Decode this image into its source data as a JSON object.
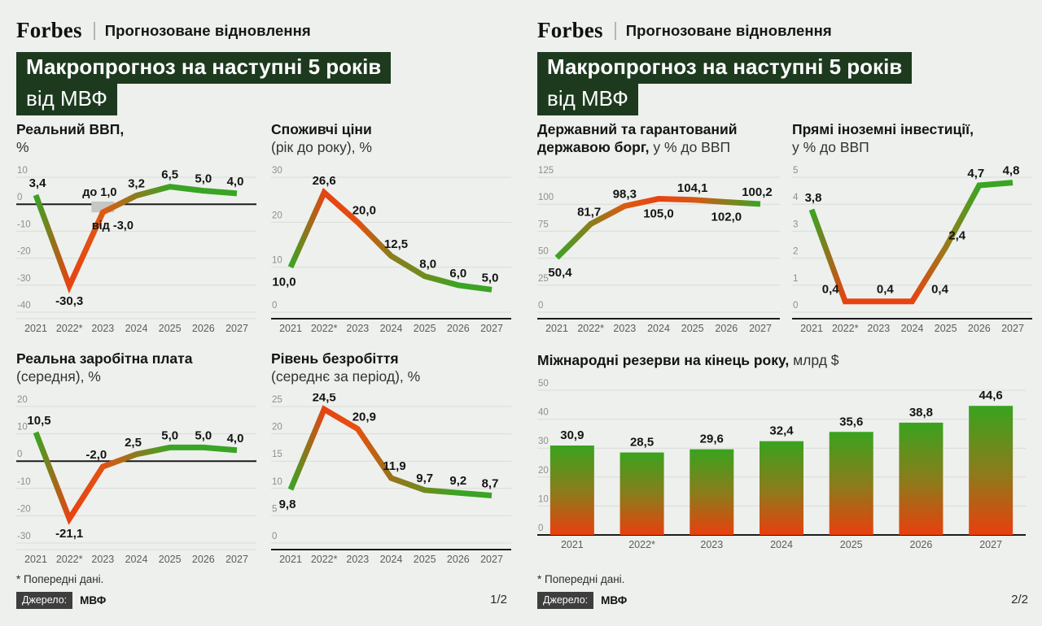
{
  "accent_colors": {
    "background": "#eef0ed",
    "headline_bg": "#1d3a1f",
    "good_green": "#3aa424",
    "bad_red": "#e84312",
    "olive_mid": "#8b7d1d",
    "grid": "#dadbd7",
    "axis_black": "#1b1b1b",
    "range_box_gray": "#c6c6c3"
  },
  "panels": [
    {
      "brand": "Forbes",
      "tagline": "Прогнозоване відновлення",
      "headline_line1": "Макропрогноз на наступні 5 років",
      "headline_line2": "від МВФ",
      "footnote": "* Попередні дані.",
      "source_label": "Джерело:",
      "source_value": "МВФ",
      "page_num": "1/2"
    },
    {
      "brand": "Forbes",
      "tagline": "Прогнозоване відновлення",
      "headline_line1": "Макропрогноз на наступні 5 років",
      "headline_line2": "від МВФ",
      "footnote": "* Попередні дані.",
      "source_label": "Джерело:",
      "source_value": "МВФ",
      "page_num": "2/2"
    }
  ],
  "chart_data": [
    {
      "type": "line",
      "title_bold": "Реальний ВВП,",
      "title_normal": "\n%",
      "categories": [
        "2021",
        "2022*",
        "2023",
        "2024",
        "2025",
        "2026",
        "2027"
      ],
      "values": [
        3.4,
        -30.3,
        -3.0,
        3.2,
        6.5,
        5.0,
        4.0
      ],
      "labels": [
        "3,4",
        "-30,3",
        "",
        "3,2",
        "6,5",
        "5,0",
        "4,0"
      ],
      "label_pos": [
        "above",
        "below",
        "none",
        "above",
        "above",
        "above",
        "above"
      ],
      "label_dx": [
        2,
        0,
        0,
        0,
        0,
        0,
        -2
      ],
      "point_colors": [
        "#3aa424",
        "#e74312",
        "#de5a14",
        "#8b7d1d",
        "#3aa424",
        "#3aa424",
        "#3aa424"
      ],
      "ymax": 10,
      "ymin": -40,
      "yticks": [
        10,
        0,
        -10,
        -20,
        -30,
        -40
      ],
      "zero_line": true,
      "axis_black": false,
      "range_2023": {
        "index": 2,
        "from": -3.0,
        "to": 1.0,
        "label_to": "до 1,0",
        "label_from": "від -3,0"
      }
    },
    {
      "type": "line",
      "title_bold": "Споживчі ціни",
      "title_normal": "\n(рік до року), %",
      "categories": [
        "2021",
        "2022*",
        "2023",
        "2024",
        "2025",
        "2026",
        "2027"
      ],
      "values": [
        10.0,
        26.6,
        20.0,
        12.5,
        8.0,
        6.0,
        5.0
      ],
      "labels": [
        "10,0",
        "26,6",
        "20,0",
        "12,5",
        "8,0",
        "6,0",
        "5,0"
      ],
      "label_pos": [
        "below",
        "above",
        "above",
        "above",
        "above",
        "above",
        "above"
      ],
      "label_dx": [
        -8,
        0,
        8,
        6,
        4,
        0,
        -2
      ],
      "point_colors": [
        "#3aa424",
        "#e74312",
        "#e14f10",
        "#8b7d1d",
        "#6e8c1e",
        "#3aa424",
        "#3aa424"
      ],
      "ymax": 30,
      "ymin": 0,
      "yticks": [
        30,
        20,
        10,
        0
      ],
      "zero_line": false,
      "axis_black": true
    },
    {
      "type": "line",
      "title_bold": "Реальна заробітна плата",
      "title_normal": "\n(середня), %",
      "categories": [
        "2021",
        "2022*",
        "2023",
        "2024",
        "2025",
        "2026",
        "2027"
      ],
      "values": [
        10.5,
        -21.1,
        -2.0,
        2.5,
        5.0,
        5.0,
        4.0
      ],
      "labels": [
        "10,5",
        "-21,1",
        "-2,0",
        "2,5",
        "5,0",
        "5,0",
        "4,0"
      ],
      "label_pos": [
        "above",
        "below",
        "above",
        "above",
        "above",
        "above",
        "above"
      ],
      "label_dx": [
        4,
        0,
        -8,
        -4,
        0,
        0,
        -2
      ],
      "point_colors": [
        "#3aa424",
        "#e74312",
        "#e25213",
        "#8b7d1d",
        "#3aa424",
        "#3aa424",
        "#3aa424"
      ],
      "ymax": 20,
      "ymin": -30,
      "yticks": [
        20,
        10,
        0,
        -10,
        -20,
        -30
      ],
      "zero_line": true,
      "axis_black": false
    },
    {
      "type": "line",
      "title_bold": "Рівень безробіття",
      "title_normal": "\n(середнє за період), %",
      "categories": [
        "2021",
        "2022*",
        "2023",
        "2024",
        "2025",
        "2026",
        "2027"
      ],
      "values": [
        9.8,
        24.5,
        20.9,
        11.9,
        9.7,
        9.2,
        8.7
      ],
      "labels": [
        "9,8",
        "24,5",
        "20,9",
        "11,9",
        "9,7",
        "9,2",
        "8,7"
      ],
      "label_pos": [
        "below",
        "above",
        "above",
        "above",
        "above",
        "above",
        "above"
      ],
      "label_dx": [
        -4,
        0,
        8,
        4,
        0,
        0,
        -2
      ],
      "point_colors": [
        "#3aa424",
        "#e74312",
        "#e5520f",
        "#97731a",
        "#6e8c1e",
        "#3aa424",
        "#3aa424"
      ],
      "ymax": 25,
      "ymin": 0,
      "yticks": [
        25,
        20,
        15,
        10,
        5,
        0
      ],
      "zero_line": false,
      "axis_black": true
    },
    {
      "type": "line",
      "title_bold": "Державний та гарантований державою борг,",
      "title_normal": " у % до ВВП",
      "categories": [
        "2021",
        "2022*",
        "2023",
        "2024",
        "2025",
        "2026",
        "2027"
      ],
      "values": [
        50.4,
        81.7,
        98.3,
        105.0,
        104.1,
        102.0,
        100.2
      ],
      "labels": [
        "50,4",
        "81,7",
        "98,3",
        "105,0",
        "104,1",
        "102,0",
        "100,2"
      ],
      "label_pos": [
        "below",
        "above",
        "above",
        "below",
        "above",
        "below",
        "above"
      ],
      "label_dx": [
        4,
        -2,
        0,
        0,
        0,
        0,
        -4
      ],
      "point_colors": [
        "#3aa424",
        "#8b7d1d",
        "#d95c12",
        "#e74312",
        "#dd5512",
        "#8b7d1d",
        "#3aa424"
      ],
      "ymax": 125,
      "ymin": 0,
      "yticks": [
        125,
        100,
        75,
        50,
        25,
        0
      ],
      "zero_line": false,
      "axis_black": true
    },
    {
      "type": "line",
      "title_bold": "Прямі іноземні інвестиції,",
      "title_normal": "\nу % до ВВП",
      "categories": [
        "2021",
        "2022*",
        "2023",
        "2024",
        "2025",
        "2026",
        "2027"
      ],
      "values": [
        3.8,
        0.4,
        0.4,
        0.4,
        2.4,
        4.7,
        4.8
      ],
      "labels": [
        "3,8",
        "0,4",
        "0,4",
        "0,4",
        "2,4",
        "4,7",
        "4,8"
      ],
      "label_pos": [
        "above",
        "above",
        "above",
        "above",
        "above",
        "above",
        "above"
      ],
      "label_dx": [
        2,
        -18,
        8,
        34,
        14,
        -4,
        -2
      ],
      "point_colors": [
        "#3aa424",
        "#e74312",
        "#e74312",
        "#e74312",
        "#9a7a1a",
        "#3aa424",
        "#3aa424"
      ],
      "ymax": 5,
      "ymin": 0,
      "yticks": [
        5,
        4,
        3,
        2,
        1,
        0
      ],
      "zero_line": false,
      "axis_black": true
    },
    {
      "type": "bar",
      "title_bold": "Міжнародні резерви на кінець року,",
      "title_normal": " млрд $",
      "categories": [
        "2021",
        "2022*",
        "2023",
        "2024",
        "2025",
        "2026",
        "2027"
      ],
      "values": [
        30.9,
        28.5,
        29.6,
        32.4,
        35.6,
        38.8,
        44.6
      ],
      "labels": [
        "30,9",
        "28,5",
        "29,6",
        "32,4",
        "35,6",
        "38,8",
        "44,6"
      ],
      "ymax": 50,
      "ymin": 0,
      "yticks": [
        50,
        40,
        30,
        20,
        10,
        0
      ],
      "zero_line": false,
      "axis_black": true,
      "bar_gradient": [
        "#39a31e",
        "#8c7c1b",
        "#e93f0e"
      ]
    }
  ]
}
